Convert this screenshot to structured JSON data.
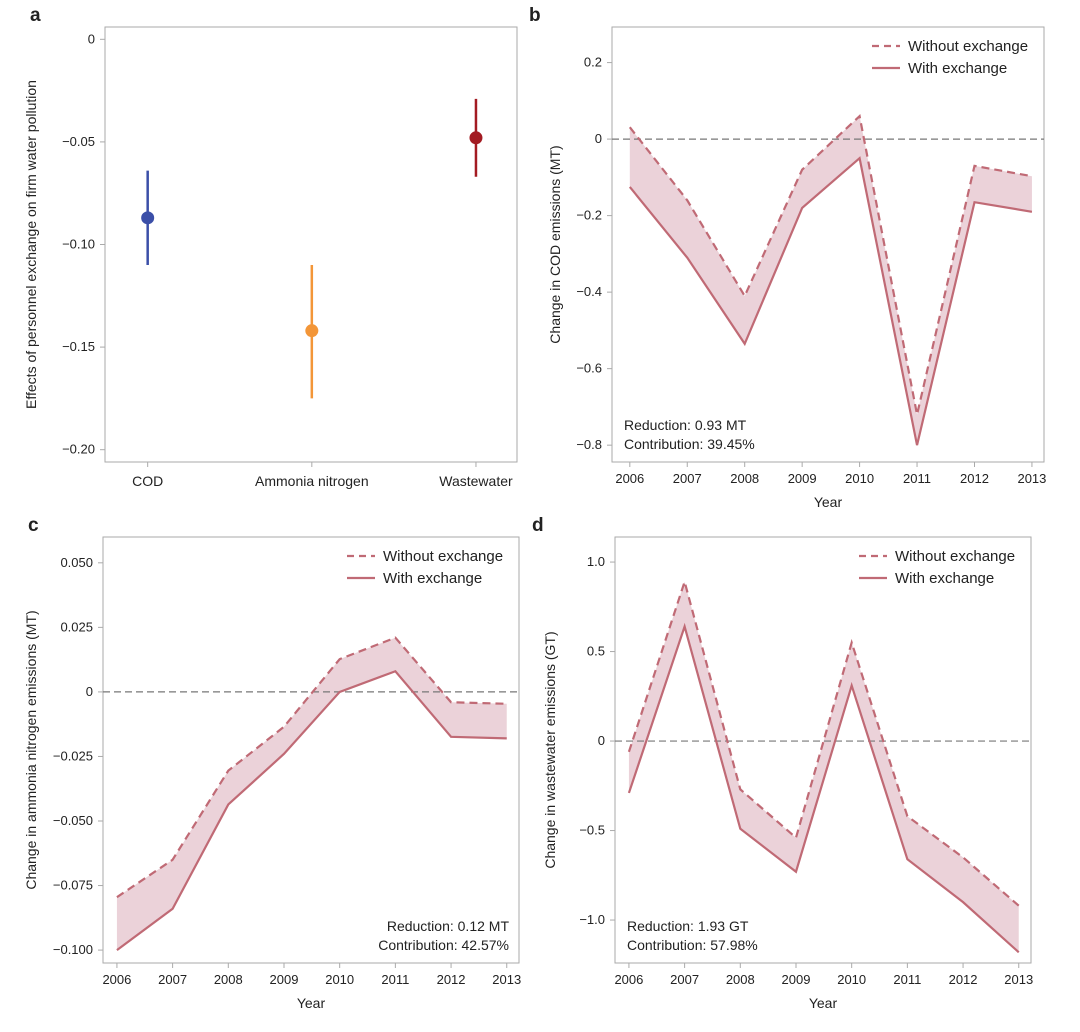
{
  "chart_data": [
    {
      "panel": "a",
      "type": "scatter",
      "ylabel": "Effects of personnel exchange on firm water pollution",
      "categories": [
        "COD",
        "Ammonia nitrogen",
        "Wastewater"
      ],
      "values": [
        -0.087,
        -0.142,
        -0.048
      ],
      "ci_low": [
        -0.11,
        -0.175,
        -0.067
      ],
      "ci_high": [
        -0.064,
        -0.11,
        -0.029
      ],
      "colors": [
        "#3b4fa8",
        "#f39638",
        "#a31b22"
      ],
      "yticks": [
        0,
        -0.05,
        -0.1,
        -0.15,
        -0.2
      ],
      "ytick_labels": [
        "0",
        "−0.05",
        "−0.10",
        "−0.15",
        "−0.20"
      ],
      "ylim": [
        -0.206,
        0.006
      ],
      "xlim": [
        -0.26,
        2.25
      ]
    },
    {
      "panel": "b",
      "type": "area",
      "xlabel": "Year",
      "ylabel": "Change in COD emissions (MT)",
      "x": [
        2006,
        2007,
        2008,
        2009,
        2010,
        2011,
        2012,
        2013
      ],
      "series": [
        {
          "name": "Without exchange",
          "style": "dashed",
          "values": [
            0.031,
            -0.16,
            -0.41,
            -0.08,
            0.06,
            -0.72,
            -0.07,
            -0.097
          ]
        },
        {
          "name": "With exchange",
          "style": "solid",
          "values": [
            -0.125,
            -0.31,
            -0.535,
            -0.18,
            -0.05,
            -0.8,
            -0.165,
            -0.19
          ]
        }
      ],
      "yticks": [
        0.2,
        0,
        -0.2,
        -0.4,
        -0.6,
        -0.8
      ],
      "ytick_labels": [
        "0.2",
        "0",
        "−0.2",
        "−0.4",
        "−0.6",
        "−0.8"
      ],
      "ylim": [
        -0.844,
        0.293
      ],
      "xlim": [
        2005.69,
        2013.21
      ],
      "annotation": [
        "Reduction: 0.93 MT",
        "Contribution: 39.45%"
      ],
      "annotation_placement": "bottom-left",
      "legend_placement": "top-right"
    },
    {
      "panel": "c",
      "type": "area",
      "xlabel": "Year",
      "ylabel": "Change in ammonia nitrogen emissions (MT)",
      "x": [
        2006,
        2007,
        2008,
        2009,
        2010,
        2011,
        2012,
        2013
      ],
      "series": [
        {
          "name": "Without exchange",
          "style": "dashed",
          "values": [
            -0.0795,
            -0.065,
            -0.0305,
            -0.0135,
            0.0127,
            0.021,
            -0.004,
            -0.0046
          ]
        },
        {
          "name": "With exchange",
          "style": "solid",
          "values": [
            -0.1,
            -0.084,
            -0.0436,
            -0.024,
            0.0,
            0.008,
            -0.0174,
            -0.018
          ]
        }
      ],
      "yticks": [
        0.05,
        0.025,
        0,
        -0.025,
        -0.05,
        -0.075,
        -0.1
      ],
      "ytick_labels": [
        "0.050",
        "0.025",
        "0",
        "−0.025",
        "−0.050",
        "−0.075",
        "−0.100"
      ],
      "ylim": [
        -0.105,
        0.06
      ],
      "xlim": [
        2005.75,
        2013.22
      ],
      "annotation": [
        "Reduction: 0.12 MT",
        "Contribution: 42.57%"
      ],
      "annotation_placement": "bottom-right",
      "legend_placement": "top-right"
    },
    {
      "panel": "d",
      "type": "area",
      "xlabel": "Year",
      "ylabel": "Change in wastewater emissions (GT)",
      "x": [
        2006,
        2007,
        2008,
        2009,
        2010,
        2011,
        2012,
        2013
      ],
      "series": [
        {
          "name": "Without exchange",
          "style": "dashed",
          "values": [
            -0.06,
            0.89,
            -0.27,
            -0.54,
            0.55,
            -0.42,
            -0.65,
            -0.92
          ]
        },
        {
          "name": "With exchange",
          "style": "solid",
          "values": [
            -0.29,
            0.64,
            -0.49,
            -0.73,
            0.31,
            -0.66,
            -0.9,
            -1.18
          ]
        }
      ],
      "yticks": [
        1.0,
        0.5,
        0,
        -0.5,
        -1.0
      ],
      "ytick_labels": [
        "1.0",
        "0.5",
        "0",
        "−0.5",
        "−1.0"
      ],
      "ylim": [
        -1.24,
        1.14
      ],
      "xlim": [
        2005.75,
        2013.22
      ],
      "annotation": [
        "Reduction: 1.93 GT",
        "Contribution: 57.98%"
      ],
      "annotation_placement": "bottom-left",
      "legend_placement": "top-right"
    }
  ],
  "colors": {
    "line": "#c06a75",
    "fill": "#ebd2d9",
    "zero_line": "#777777",
    "axis": "#aaaaaa"
  }
}
